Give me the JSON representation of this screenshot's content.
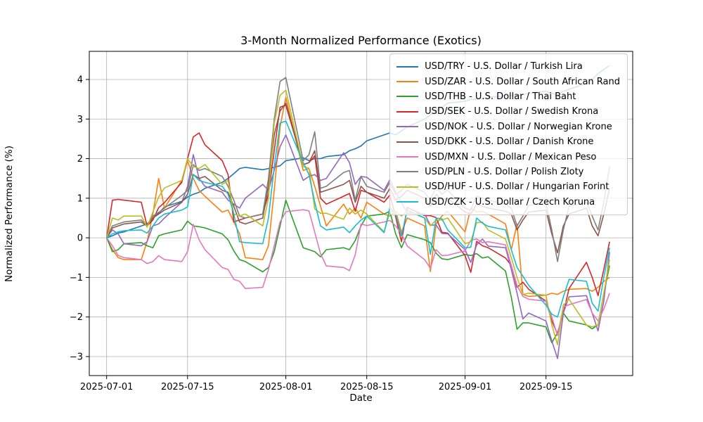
{
  "figure": {
    "title": "3-Month Normalized Performance (Exotics)",
    "xlabel": "Date",
    "ylabel": "Normalized Performance (%)"
  },
  "chart_data": {
    "type": "line",
    "title": "3-Month Normalized Performance (Exotics)",
    "xlabel": "Date",
    "ylabel": "Normalized Performance (%)",
    "grid": true,
    "legend_position": "upper right",
    "ylim": [
      -3.48,
      4.71
    ],
    "xlim_days_from_2025_07_01": [
      -3,
      91
    ],
    "yticks": [
      -3,
      -2,
      -1,
      0,
      1,
      2,
      3,
      4
    ],
    "x_ticks": [
      "2025-07-01",
      "2025-07-15",
      "2025-08-01",
      "2025-08-15",
      "2025-09-01",
      "2025-09-15"
    ],
    "x": [
      "2025-07-01",
      "2025-07-02",
      "2025-07-03",
      "2025-07-04",
      "2025-07-07",
      "2025-07-08",
      "2025-07-09",
      "2025-07-10",
      "2025-07-11",
      "2025-07-14",
      "2025-07-15",
      "2025-07-16",
      "2025-07-17",
      "2025-07-18",
      "2025-07-21",
      "2025-07-22",
      "2025-07-23",
      "2025-07-24",
      "2025-07-25",
      "2025-07-28",
      "2025-07-29",
      "2025-07-30",
      "2025-07-31",
      "2025-08-01",
      "2025-08-04",
      "2025-08-05",
      "2025-08-06",
      "2025-08-07",
      "2025-08-08",
      "2025-08-11",
      "2025-08-12",
      "2025-08-13",
      "2025-08-14",
      "2025-08-15",
      "2025-08-18",
      "2025-08-19",
      "2025-08-20",
      "2025-08-21",
      "2025-08-22",
      "2025-08-25",
      "2025-08-26",
      "2025-08-27",
      "2025-08-28",
      "2025-08-29",
      "2025-09-01",
      "2025-09-02",
      "2025-09-03",
      "2025-09-04",
      "2025-09-05",
      "2025-09-08",
      "2025-09-09",
      "2025-09-10",
      "2025-09-11",
      "2025-09-12",
      "2025-09-15",
      "2025-09-16",
      "2025-09-17",
      "2025-09-18",
      "2025-09-19",
      "2025-09-22",
      "2025-09-23",
      "2025-09-24",
      "2025-09-25",
      "2025-09-26"
    ],
    "series": [
      {
        "name": "USD/TRY",
        "label": "USD/TRY - U.S. Dollar / Turkish Lira",
        "color": "#1f77b4",
        "values": [
          0,
          0.05,
          0.12,
          0.15,
          0.3,
          0.35,
          0.5,
          0.62,
          0.78,
          0.92,
          1.03,
          1.1,
          1.15,
          1.25,
          1.4,
          1.5,
          1.62,
          1.75,
          1.78,
          1.72,
          1.75,
          1.78,
          1.82,
          1.95,
          2.02,
          1.95,
          2.0,
          2.0,
          2.05,
          2.1,
          2.2,
          2.25,
          2.32,
          2.45,
          2.6,
          2.65,
          2.6,
          2.7,
          2.8,
          3.0,
          3.1,
          3.2,
          3.3,
          3.4,
          3.45,
          3.5,
          3.5,
          3.52,
          3.55,
          3.58,
          3.6,
          3.6,
          3.62,
          3.65,
          3.7,
          3.65,
          3.62,
          3.7,
          3.75,
          3.9,
          4.0,
          4.15,
          4.25,
          4.35
        ]
      },
      {
        "name": "USD/ZAR",
        "label": "USD/ZAR - U.S. Dollar / South African Rand",
        "color": "#ff7f0e",
        "values": [
          0,
          -0.3,
          -0.5,
          -0.55,
          -0.55,
          -0.1,
          0.6,
          1.5,
          0.75,
          1.45,
          1.95,
          1.5,
          1.2,
          1.05,
          0.65,
          0.7,
          0.4,
          0.1,
          -0.5,
          -0.55,
          -0.2,
          1.2,
          2.8,
          3.55,
          1.7,
          1.75,
          1.3,
          0.8,
          0.3,
          0.85,
          0.6,
          0.75,
          0.5,
          0.9,
          0.6,
          0.55,
          0.68,
          0.14,
          0.5,
          0.3,
          -0.85,
          0.35,
          0.55,
          0.67,
          0.15,
          0.75,
          0.65,
          0.67,
          0.6,
          0.35,
          -0.3,
          0.35,
          -1.43,
          -1.48,
          -1.45,
          -1.4,
          -1.43,
          -1.35,
          -1.3,
          -1.28,
          -1.35,
          -1.25,
          -1.1,
          -1.0
        ]
      },
      {
        "name": "USD/THB",
        "label": "USD/THB - U.S. Dollar / Thai Baht",
        "color": "#2ca02c",
        "values": [
          0,
          -0.35,
          -0.3,
          -0.15,
          -0.12,
          -0.2,
          -0.25,
          0.05,
          0.1,
          0.2,
          0.42,
          0.3,
          0.28,
          0.25,
          0.1,
          -0.05,
          -0.33,
          -0.55,
          -0.6,
          -0.86,
          -0.75,
          -0.35,
          0.3,
          0.95,
          -0.25,
          -0.3,
          -0.35,
          -0.48,
          -0.3,
          -0.25,
          -0.3,
          -0.07,
          0.3,
          0.55,
          0.6,
          0.67,
          0.1,
          -0.25,
          0.08,
          -0.05,
          -0.12,
          -0.39,
          -0.53,
          -0.55,
          -0.42,
          -0.45,
          -0.4,
          -0.51,
          -0.48,
          -0.84,
          -1.5,
          -2.31,
          -2.15,
          -2.15,
          -2.25,
          -2.65,
          -2.4,
          -1.9,
          -2.1,
          -2.2,
          -2.3,
          -2.2,
          -1.4,
          -0.7
        ]
      },
      {
        "name": "USD/SEK",
        "label": "USD/SEK - U.S. Dollar / Swedish Krona",
        "color": "#d62728",
        "values": [
          0,
          0.95,
          0.97,
          0.95,
          0.9,
          0.3,
          0.45,
          0.76,
          0.89,
          1.4,
          2.0,
          2.55,
          2.65,
          2.35,
          1.95,
          1.6,
          0.4,
          0.45,
          0.5,
          0.6,
          1.1,
          2.2,
          3.3,
          3.35,
          1.85,
          1.9,
          2.07,
          1.0,
          0.85,
          1.05,
          1.12,
          0.67,
          1.2,
          1.15,
          0.9,
          1.08,
          0.53,
          -0.1,
          0.77,
          0.56,
          0.56,
          0.51,
          0.14,
          0.12,
          -0.45,
          -0.87,
          -0.09,
          -0.2,
          -0.25,
          -0.51,
          -0.7,
          -1.25,
          -1.12,
          -1.3,
          -1.6,
          -2.1,
          -2.43,
          -1.9,
          -1.28,
          -0.62,
          -1.0,
          -1.46,
          -0.8,
          -0.1
        ]
      },
      {
        "name": "USD/NOK",
        "label": "USD/NOK - U.S. Dollar / Norwegian Krone",
        "color": "#9467bd",
        "values": [
          0,
          0.2,
          0.1,
          -0.15,
          -0.2,
          -0.1,
          0.3,
          0.35,
          0.5,
          0.9,
          1.3,
          2.1,
          1.5,
          1.3,
          1.15,
          0.95,
          0.85,
          0.75,
          1.0,
          1.35,
          1.2,
          1.7,
          2.3,
          2.6,
          1.45,
          1.55,
          1.6,
          1.45,
          1.5,
          2.15,
          1.9,
          1.35,
          1.55,
          1.53,
          1.2,
          1.47,
          1.15,
          0.9,
          0.62,
          0.6,
          0.32,
          0.32,
          0.11,
          0.1,
          -0.3,
          -0.62,
          -0.18,
          -0.03,
          -0.21,
          -0.25,
          -0.8,
          -1.4,
          -2.05,
          -1.9,
          -2.1,
          -2.6,
          -3.05,
          -1.9,
          -1.49,
          -1.46,
          -1.9,
          -2.35,
          -1.6,
          -0.36
        ]
      },
      {
        "name": "USD/DKK",
        "label": "USD/DKK - U.S. Dollar / Danish Krone",
        "color": "#8c564b",
        "values": [
          0,
          0.25,
          0.3,
          0.35,
          0.4,
          0.3,
          0.5,
          0.6,
          0.7,
          0.9,
          1.1,
          1.6,
          1.5,
          1.55,
          1.2,
          1.15,
          0.8,
          0.4,
          0.35,
          0.5,
          1.3,
          2.6,
          3.2,
          3.4,
          1.85,
          1.9,
          2.2,
          1.15,
          1.2,
          1.35,
          1.45,
          0.9,
          1.3,
          1.15,
          1.0,
          1.25,
          0.95,
          1.05,
          1.2,
          1.0,
          0.8,
          1.1,
          0.95,
          1.0,
          0.65,
          0.6,
          0.85,
          0.8,
          0.75,
          0.67,
          0.6,
          0.2,
          0.45,
          0.65,
          0.7,
          0.1,
          -0.38,
          0.3,
          0.6,
          0.75,
          0.3,
          0.05,
          0.6,
          1.25
        ]
      },
      {
        "name": "USD/MXN",
        "label": "USD/MXN - U.S. Dollar / Mexican Peso",
        "color": "#e377c2",
        "values": [
          0,
          -0.2,
          -0.45,
          -0.5,
          -0.55,
          -0.65,
          -0.6,
          -0.45,
          -0.55,
          -0.6,
          -0.35,
          0.34,
          -0.05,
          -0.3,
          -0.75,
          -0.8,
          -1.05,
          -1.1,
          -1.28,
          -1.25,
          -0.8,
          -0.2,
          0.4,
          0.66,
          0.71,
          0.68,
          0.14,
          -0.4,
          -0.71,
          -0.75,
          -0.83,
          -0.43,
          0.35,
          0.31,
          0.4,
          0.44,
          0.3,
          0.1,
          -0.21,
          -0.55,
          -0.77,
          -0.3,
          -0.45,
          -0.44,
          -0.33,
          -0.06,
          -0.03,
          -0.12,
          -0.1,
          -0.18,
          -0.7,
          -1.2,
          -1.48,
          -1.55,
          -1.6,
          -2.0,
          -2.47,
          -1.75,
          -1.69,
          -1.56,
          -1.9,
          -2.1,
          -1.8,
          -1.4
        ]
      },
      {
        "name": "USD/PLN",
        "label": "USD/PLN - U.S. Dollar / Polish Zloty",
        "color": "#7f7f7f",
        "values": [
          0,
          0.3,
          0.35,
          0.4,
          0.45,
          0.3,
          0.55,
          0.64,
          0.75,
          1.07,
          1.2,
          1.85,
          1.7,
          1.75,
          1.55,
          1.3,
          0.95,
          0.55,
          0.5,
          0.6,
          1.5,
          3.0,
          3.95,
          4.05,
          1.95,
          2.1,
          2.68,
          1.25,
          1.3,
          1.65,
          1.7,
          0.95,
          1.55,
          1.3,
          1.15,
          1.4,
          1.1,
          1.2,
          1.35,
          1.15,
          0.95,
          1.3,
          1.1,
          1.2,
          0.75,
          0.7,
          1.05,
          1.0,
          0.95,
          0.85,
          0.75,
          0.3,
          0.55,
          0.82,
          0.88,
          0.2,
          -0.6,
          0.2,
          0.8,
          0.9,
          0.55,
          0.2,
          0.9,
          1.8
        ]
      },
      {
        "name": "USD/HUF",
        "label": "USD/HUF - U.S. Dollar / Hungarian Forint",
        "color": "#bcbd22",
        "values": [
          0,
          0.5,
          0.45,
          0.55,
          0.55,
          0.27,
          0.65,
          1.03,
          1.26,
          1.45,
          2.0,
          1.8,
          1.75,
          1.85,
          1.35,
          1.45,
          0.6,
          0.55,
          0.6,
          0.3,
          1.0,
          2.9,
          3.6,
          3.73,
          1.8,
          1.76,
          0.73,
          0.62,
          0.62,
          0.47,
          0.75,
          0.6,
          0.7,
          0.6,
          0.15,
          0.65,
          0.68,
          0.55,
          0.68,
          0.5,
          0.3,
          0.45,
          0.45,
          0.5,
          -0.15,
          -0.1,
          0.38,
          0.4,
          0.2,
          -0.03,
          -0.5,
          -1.0,
          -1.43,
          -1.4,
          -1.45,
          -2.2,
          -2.7,
          -1.7,
          -1.55,
          -2.2,
          -2.25,
          -2.2,
          -1.4,
          -0.55
        ]
      },
      {
        "name": "USD/CZK",
        "label": "USD/CZK - U.S. Dollar / Czech Koruna",
        "color": "#17becf",
        "values": [
          0,
          0.1,
          0.15,
          0.18,
          0.2,
          0.12,
          0.3,
          0.5,
          0.6,
          0.7,
          0.78,
          1.6,
          1.45,
          1.4,
          1.3,
          1.1,
          0.6,
          -0.1,
          -0.12,
          -0.15,
          0.5,
          1.8,
          2.9,
          2.95,
          1.9,
          1.6,
          0.9,
          0.3,
          0.2,
          0.27,
          0.13,
          0.3,
          0.45,
          0.55,
          0.13,
          0.76,
          0.6,
          0.05,
          0.71,
          0.5,
          -0.42,
          0.5,
          0.48,
          0.2,
          -0.25,
          -0.24,
          0.5,
          0.37,
          0.29,
          0.2,
          -0.3,
          -0.75,
          -0.97,
          -1.2,
          -1.7,
          -1.93,
          -2.0,
          -1.5,
          -1.05,
          -1.1,
          -1.65,
          -1.85,
          -1.0,
          -0.25
        ]
      }
    ]
  }
}
